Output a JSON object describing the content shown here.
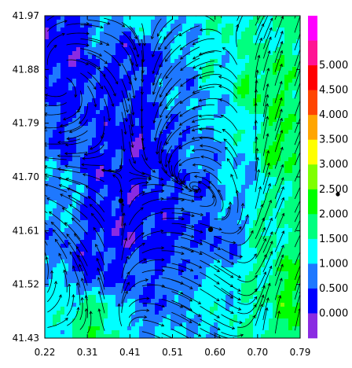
{
  "chart_data": {
    "type": "heatmap",
    "title": "",
    "xlabel": "",
    "ylabel": "",
    "xlim": [
      0.22,
      0.79
    ],
    "ylim": [
      41.43,
      41.97
    ],
    "x_ticks": [
      "0.22",
      "0.31",
      "0.41",
      "0.51",
      "0.60",
      "0.70",
      "0.79"
    ],
    "y_ticks": [
      "41.97",
      "41.88",
      "41.79",
      "41.70",
      "41.61",
      "41.52",
      "41.43"
    ],
    "overlay": "streamlines",
    "colorbar": {
      "placement": "right",
      "levels": [
        {
          "label": "",
          "color": "#8a2be2"
        },
        {
          "label": "0.000",
          "color": "#0000ff"
        },
        {
          "label": "0.500",
          "color": "#1e78ff"
        },
        {
          "label": "1.000",
          "color": "#00ffff"
        },
        {
          "label": "1.500",
          "color": "#00ff7f"
        },
        {
          "label": "2.000",
          "color": "#00ff00"
        },
        {
          "label": "2.500",
          "color": "#7fff00"
        },
        {
          "label": "3.000",
          "color": "#ffff00"
        },
        {
          "label": "3.500",
          "color": "#ffa500"
        },
        {
          "label": "4.000",
          "color": "#ff4500"
        },
        {
          "label": "4.500",
          "color": "#ff0000"
        },
        {
          "label": "5.000",
          "color": "#ff1493"
        },
        {
          "label": "",
          "color": "#ff00ff"
        }
      ]
    },
    "markers": [
      {
        "x": 0.39,
        "y": 41.66
      },
      {
        "x": 0.59,
        "y": 41.612
      }
    ],
    "regions": [
      {
        "x": 0.26,
        "y": 41.92,
        "value": 0.2
      },
      {
        "x": 0.33,
        "y": 41.86,
        "value": 0.4
      },
      {
        "x": 0.42,
        "y": 41.91,
        "value": 0.3
      },
      {
        "x": 0.29,
        "y": 41.76,
        "value": 0.5
      },
      {
        "x": 0.37,
        "y": 41.71,
        "value": 0.3
      },
      {
        "x": 0.44,
        "y": 41.74,
        "value": 0.2
      },
      {
        "x": 0.4,
        "y": 41.62,
        "value": 0.2
      },
      {
        "x": 0.47,
        "y": 41.6,
        "value": 0.3
      },
      {
        "x": 0.33,
        "y": 41.55,
        "value": 0.4
      },
      {
        "x": 0.52,
        "y": 41.67,
        "value": 0.5
      },
      {
        "x": 0.57,
        "y": 41.72,
        "value": 0.7
      },
      {
        "x": 0.49,
        "y": 41.53,
        "value": 0.6
      },
      {
        "x": 0.53,
        "y": 41.84,
        "value": 0.8
      },
      {
        "x": 0.6,
        "y": 41.88,
        "value": 1.3
      },
      {
        "x": 0.67,
        "y": 41.93,
        "value": 1.5
      },
      {
        "x": 0.7,
        "y": 41.85,
        "value": 1.9
      },
      {
        "x": 0.75,
        "y": 41.75,
        "value": 2.0
      },
      {
        "x": 0.73,
        "y": 41.62,
        "value": 1.6
      },
      {
        "x": 0.77,
        "y": 41.5,
        "value": 2.1
      },
      {
        "x": 0.69,
        "y": 41.48,
        "value": 1.5
      },
      {
        "x": 0.62,
        "y": 41.5,
        "value": 1.3
      },
      {
        "x": 0.57,
        "y": 41.46,
        "value": 1.1
      },
      {
        "x": 0.26,
        "y": 41.47,
        "value": 1.2
      },
      {
        "x": 0.31,
        "y": 41.46,
        "value": 1.8
      },
      {
        "x": 0.24,
        "y": 41.68,
        "value": 1.0
      },
      {
        "x": 0.64,
        "y": 41.78,
        "value": 1.2
      },
      {
        "x": 0.44,
        "y": 41.96,
        "value": 1.1
      },
      {
        "x": 0.36,
        "y": 41.96,
        "value": 0.9
      },
      {
        "x": 0.6,
        "y": 41.6,
        "value": 0.6
      },
      {
        "x": 0.66,
        "y": 41.69,
        "value": 1.1
      }
    ]
  }
}
